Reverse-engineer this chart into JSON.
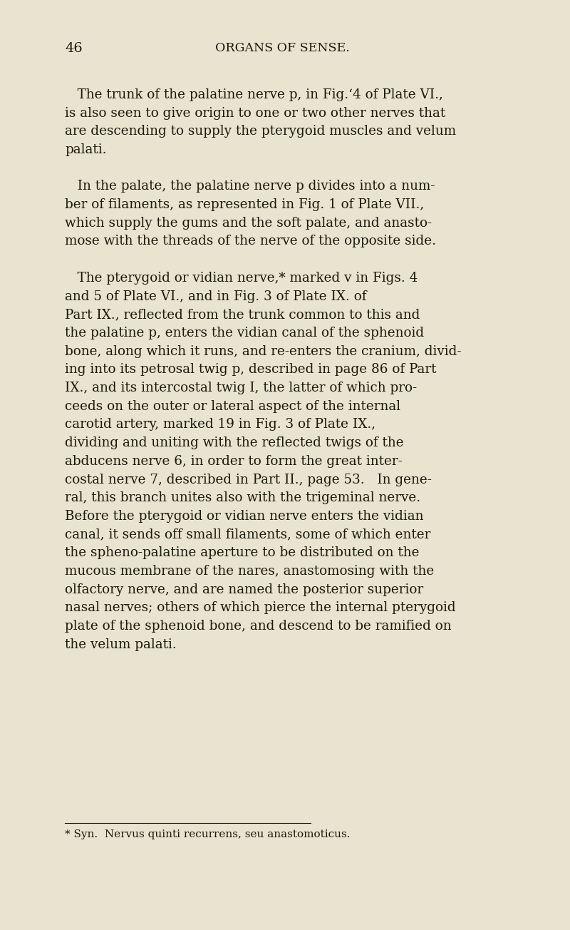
{
  "background_color": "#e8e4d0",
  "page_number": "46",
  "header": "ORGANS OF SENSE.",
  "text_color": "#1a1a0a",
  "font_size_body": 13.2,
  "font_size_header": 12.5,
  "font_size_footnote": 11,
  "footnote": "* Syn.  Nervus quinti recurrens, seu anastomoticus."
}
